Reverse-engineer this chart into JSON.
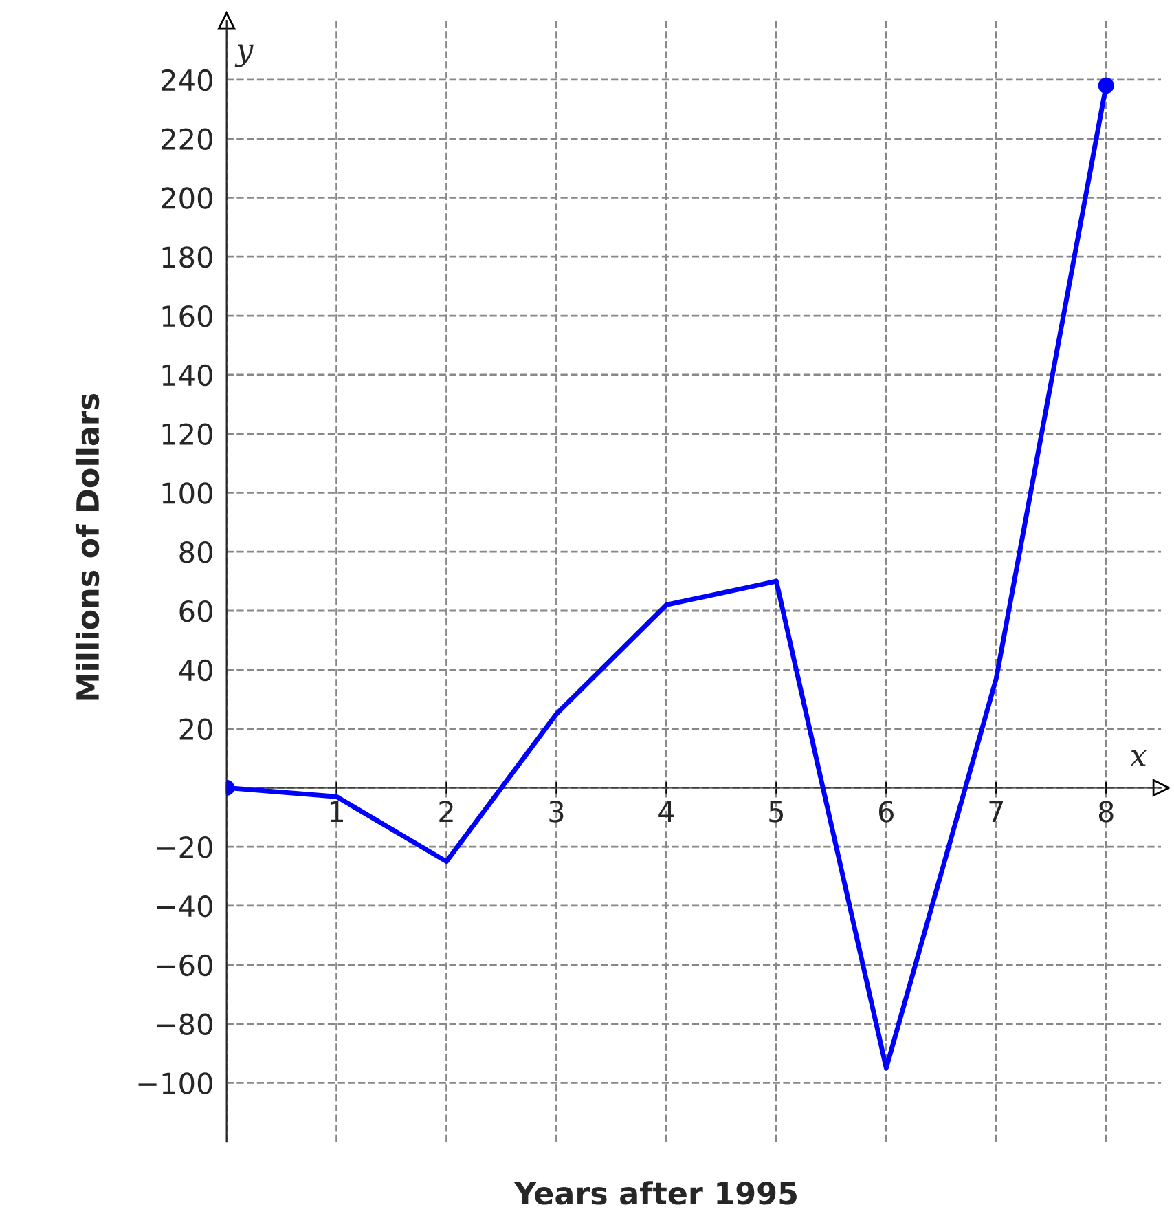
{
  "chart_data": {
    "type": "line",
    "xlabel": "Years after 1995",
    "ylabel": "Millions of Dollars",
    "annotations": [
      "x",
      "y"
    ],
    "series": [
      {
        "color": "#0000ff",
        "x": [
          0,
          1,
          2,
          3,
          4,
          5,
          6,
          7,
          8
        ],
        "values": [
          0,
          -3,
          -25,
          25,
          62,
          70,
          -95,
          37,
          238
        ],
        "marker": "none"
      },
      {
        "type": "scatter",
        "color": "#0000ff",
        "x": [
          0,
          8
        ],
        "values": [
          0,
          238
        ],
        "marker": "circle"
      }
    ],
    "xlim": [
      0,
      8.5
    ],
    "ylim": [
      -120,
      260
    ],
    "xticks": [
      {
        "value": 0,
        "label": null
      },
      1,
      2,
      3,
      4,
      5,
      6,
      7,
      8
    ],
    "yticks": [
      {
        "value": -100,
        "label": "−100"
      },
      {
        "value": -80,
        "label": "−80"
      },
      {
        "value": -60,
        "label": "−60"
      },
      {
        "value": -40,
        "label": "−40"
      },
      {
        "value": -20,
        "label": "−20"
      },
      {
        "value": 0,
        "label": null
      },
      20,
      40,
      60,
      80,
      100,
      120,
      140,
      160,
      180,
      200,
      220,
      240
    ],
    "grid": true,
    "line_style": "solid"
  }
}
